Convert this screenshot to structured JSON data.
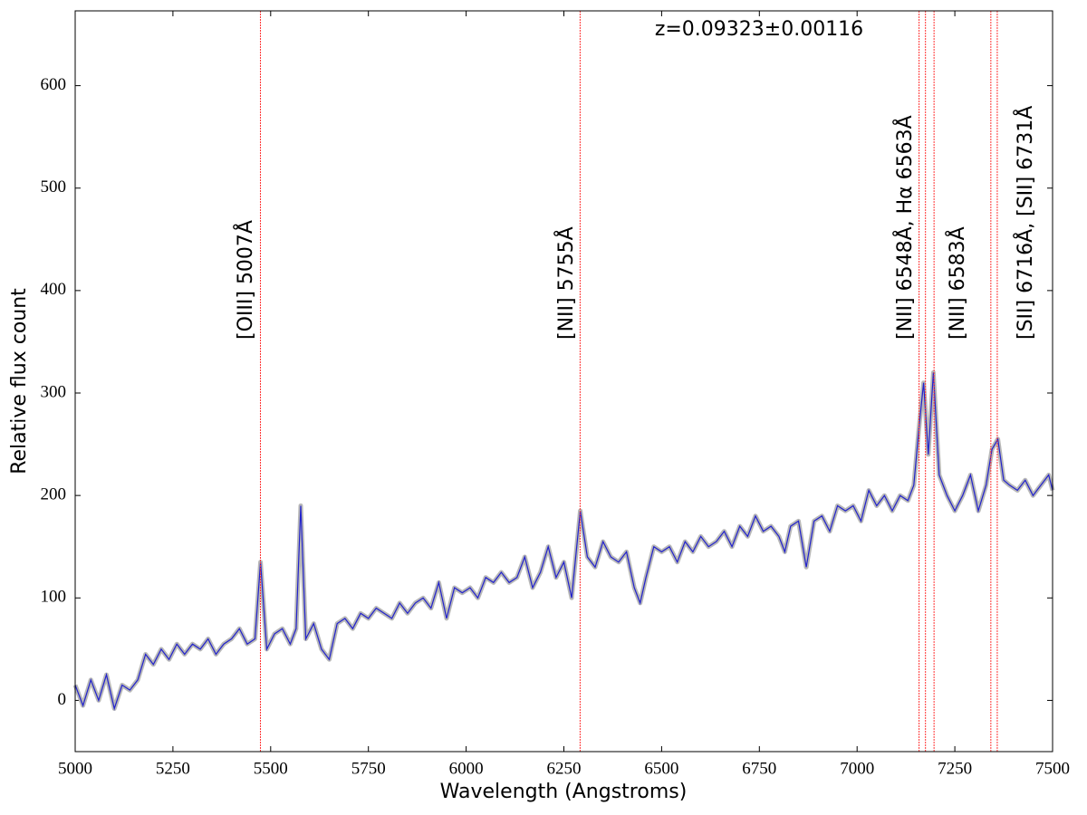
{
  "chart_data": {
    "type": "line",
    "x_label": "Wavelength (Angstroms)",
    "y_label": "Relative flux count",
    "xlim": [
      5000,
      7500
    ],
    "ylim": [
      -50,
      673
    ],
    "xticks": [
      5000,
      5250,
      5500,
      5750,
      6000,
      6250,
      6500,
      6750,
      7000,
      7250,
      7500
    ],
    "yticks": [
      0,
      100,
      200,
      300,
      400,
      500,
      600
    ],
    "series": [
      {
        "color": "#2222cc",
        "x": [
          5000,
          5020,
          5040,
          5060,
          5080,
          5100,
          5120,
          5140,
          5160,
          5180,
          5200,
          5220,
          5240,
          5260,
          5280,
          5300,
          5320,
          5340,
          5360,
          5380,
          5400,
          5420,
          5440,
          5460,
          5474,
          5490,
          5510,
          5530,
          5550,
          5565,
          5577,
          5590,
          5610,
          5630,
          5650,
          5670,
          5690,
          5710,
          5730,
          5750,
          5770,
          5790,
          5810,
          5830,
          5850,
          5870,
          5890,
          5910,
          5930,
          5950,
          5970,
          5990,
          6010,
          6030,
          6050,
          6070,
          6090,
          6110,
          6130,
          6150,
          6170,
          6190,
          6210,
          6230,
          6250,
          6270,
          6292,
          6310,
          6330,
          6350,
          6370,
          6390,
          6410,
          6430,
          6445,
          6460,
          6480,
          6500,
          6520,
          6540,
          6560,
          6580,
          6600,
          6620,
          6640,
          6660,
          6680,
          6700,
          6720,
          6740,
          6760,
          6780,
          6800,
          6815,
          6830,
          6850,
          6870,
          6890,
          6910,
          6930,
          6950,
          6970,
          6990,
          7010,
          7030,
          7050,
          7070,
          7090,
          7110,
          7130,
          7145,
          7158,
          7170,
          7182,
          7195,
          7210,
          7230,
          7250,
          7270,
          7290,
          7310,
          7330,
          7345,
          7360,
          7375,
          7390,
          7410,
          7430,
          7450,
          7470,
          7490,
          7500
        ],
        "values": [
          15,
          -5,
          20,
          0,
          25,
          -8,
          15,
          10,
          20,
          45,
          35,
          50,
          40,
          55,
          45,
          55,
          50,
          60,
          45,
          55,
          60,
          70,
          55,
          60,
          135,
          50,
          65,
          70,
          55,
          70,
          190,
          60,
          75,
          50,
          40,
          75,
          80,
          70,
          85,
          80,
          90,
          85,
          80,
          95,
          85,
          95,
          100,
          90,
          115,
          80,
          110,
          105,
          110,
          100,
          120,
          115,
          125,
          115,
          120,
          140,
          110,
          125,
          150,
          120,
          135,
          100,
          185,
          140,
          130,
          155,
          140,
          135,
          145,
          110,
          95,
          120,
          150,
          145,
          150,
          135,
          155,
          145,
          160,
          150,
          155,
          165,
          150,
          170,
          160,
          180,
          165,
          170,
          160,
          145,
          170,
          175,
          130,
          175,
          180,
          165,
          190,
          185,
          190,
          175,
          205,
          190,
          200,
          185,
          200,
          195,
          210,
          265,
          310,
          240,
          320,
          220,
          200,
          185,
          200,
          220,
          185,
          210,
          245,
          255,
          215,
          210,
          205,
          215,
          200,
          210,
          220,
          205
        ]
      }
    ],
    "line_color": "#ff3333",
    "lines_x": [
      5473.8,
      6291.5,
      7158.5,
      7174.9,
      7196.8,
      7342.1,
      7358.5
    ],
    "annotations": [
      "[OIII] 5007Å",
      "[NII] 5755Å",
      "[NII] 6548Å, Hα 6563Å",
      "[NII] 6583Å",
      "[SII] 6716Å, [SII] 6731Å"
    ],
    "redshift_label": "z=0.09323±0.00116"
  }
}
